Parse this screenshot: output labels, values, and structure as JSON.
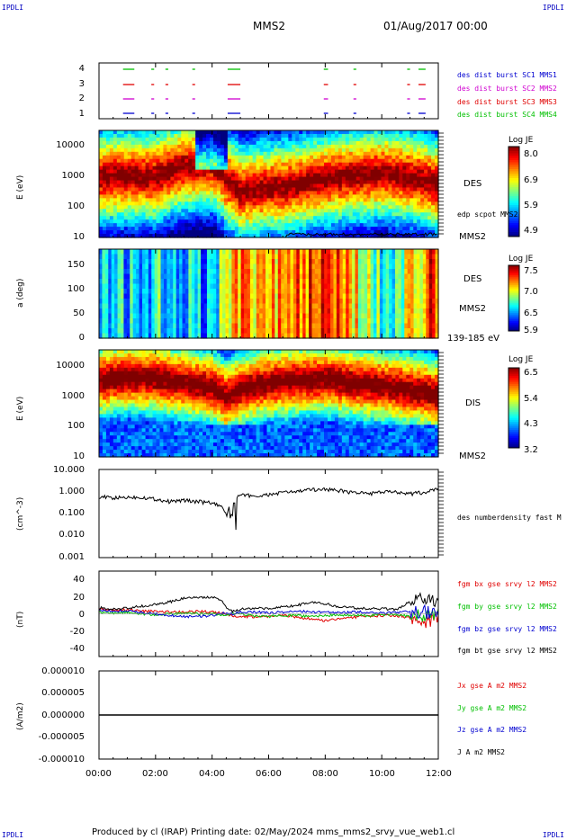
{
  "corner_marks": {
    "top_left": "IPDLI",
    "top_right": "IPDLI",
    "bottom_left": "IPDLI",
    "bottom_right": "IPDLI"
  },
  "header": {
    "spacecraft": "MMS2",
    "date": "01/Aug/2017 00:00"
  },
  "footer": {
    "text": "Produced by cl (IRAP)   Printing date: 02/May/2024   mms_mms2_srvy_vue_web1.cl"
  },
  "colors": {
    "red": "#e00000",
    "magenta": "#d000d0",
    "green": "#00c000",
    "blue": "#0000d0",
    "black": "#000000"
  },
  "x_ticks": [
    "00:00",
    "02:00",
    "04:00",
    "06:00",
    "08:00",
    "10:00",
    "12:00"
  ],
  "panels": {
    "burst": {
      "y_ticks": [
        "4",
        "3",
        "2",
        "1"
      ],
      "legend": [
        {
          "text": "des dist burst SC1 MMS1",
          "color": "#0000d0"
        },
        {
          "text": "des dist burst SC2 MMS2",
          "color": "#d000d0"
        },
        {
          "text": "des dist burst SC3 MMS3",
          "color": "#e00000"
        },
        {
          "text": "des dist burst SC4 MMS4",
          "color": "#00c000"
        }
      ]
    },
    "des_energy": {
      "ylabel": "E (eV)",
      "y_ticks": [
        "10000",
        "1000",
        "100",
        "10"
      ],
      "species": "DES",
      "spacecraft": "MMS2",
      "overlay_label": "edp scpot MMS2",
      "colorbar": {
        "title": "Log JE",
        "ticks": [
          "8.0",
          "6.9",
          "5.9",
          "4.9"
        ]
      }
    },
    "des_pitch": {
      "ylabel": "a (deg)",
      "y_ticks": [
        "150",
        "100",
        "50",
        "0"
      ],
      "species": "DES",
      "spacecraft": "MMS2",
      "energy_range": "139-185 eV",
      "colorbar": {
        "title": "Log JE",
        "ticks": [
          "7.5",
          "7.0",
          "6.5",
          "5.9"
        ]
      }
    },
    "dis_energy": {
      "ylabel": "E (eV)",
      "y_ticks": [
        "10000",
        "1000",
        "100",
        "10"
      ],
      "species": "DIS",
      "spacecraft": "MMS2",
      "colorbar": {
        "title": "Log JE",
        "ticks": [
          "6.5",
          "5.4",
          "4.3",
          "3.2"
        ]
      }
    },
    "density": {
      "ylabel": "(cm^-3)",
      "y_ticks": [
        "10.000",
        "1.000",
        "0.100",
        "0.010",
        "0.001"
      ],
      "legend": "des numberdensity fast M"
    },
    "bfield": {
      "ylabel": "(nT)",
      "y_ticks": [
        "40",
        "20",
        "0",
        "-20",
        "-40"
      ],
      "legend": [
        {
          "text": "fgm bx gse srvy l2 MMS2",
          "color": "#e00000"
        },
        {
          "text": "fgm by gse srvy l2 MMS2",
          "color": "#00c000"
        },
        {
          "text": "fgm bz gse srvy l2 MMS2",
          "color": "#0000d0"
        },
        {
          "text": "fgm bt gse srvy l2 MMS2",
          "color": "#000000"
        }
      ]
    },
    "current": {
      "ylabel": "(A/m2)",
      "y_ticks": [
        "0.000010",
        "0.000005",
        "0.000000",
        "-0.000005",
        "-0.000010"
      ],
      "legend": [
        {
          "text": "Jx gse A m2 MMS2",
          "color": "#e00000"
        },
        {
          "text": "Jy gse A m2 MMS2",
          "color": "#00c000"
        },
        {
          "text": "Jz gse A m2 MMS2",
          "color": "#0000d0"
        },
        {
          "text": "J A m2 MMS2",
          "color": "#000000"
        }
      ]
    }
  },
  "chart_data": [
    {
      "type": "line",
      "name": "burst intervals",
      "xlim": [
        0,
        12
      ],
      "x_unit": "hours UT",
      "series": [
        {
          "name": "des dist burst SC1 MMS1",
          "level": 1,
          "intervals": [
            [
              0.85,
              1.25
            ],
            [
              1.85,
              1.95
            ],
            [
              2.35,
              2.45
            ],
            [
              3.3,
              3.4
            ],
            [
              4.55,
              5.0
            ],
            [
              7.95,
              8.1
            ],
            [
              9.0,
              9.1
            ],
            [
              10.9,
              11.0
            ],
            [
              11.3,
              11.55
            ]
          ]
        },
        {
          "name": "des dist burst SC2 MMS2",
          "level": 2,
          "intervals": [
            [
              0.85,
              1.25
            ],
            [
              1.85,
              1.95
            ],
            [
              2.35,
              2.45
            ],
            [
              3.3,
              3.4
            ],
            [
              4.55,
              5.0
            ],
            [
              7.95,
              8.1
            ],
            [
              9.0,
              9.1
            ],
            [
              10.9,
              11.0
            ],
            [
              11.3,
              11.55
            ]
          ]
        },
        {
          "name": "des dist burst SC3 MMS3",
          "level": 3,
          "intervals": [
            [
              0.85,
              1.25
            ],
            [
              1.85,
              1.95
            ],
            [
              2.35,
              2.45
            ],
            [
              3.3,
              3.4
            ],
            [
              4.55,
              5.0
            ],
            [
              7.95,
              8.1
            ],
            [
              9.0,
              9.1
            ],
            [
              10.9,
              11.0
            ],
            [
              11.3,
              11.55
            ]
          ]
        },
        {
          "name": "des dist burst SC4 MMS4",
          "level": 4,
          "intervals": [
            [
              0.85,
              1.25
            ],
            [
              1.85,
              1.95
            ],
            [
              2.35,
              2.45
            ],
            [
              3.3,
              3.4
            ],
            [
              4.55,
              5.0
            ],
            [
              7.95,
              8.1
            ],
            [
              9.0,
              9.1
            ],
            [
              10.9,
              11.0
            ],
            [
              11.3,
              11.55
            ]
          ]
        }
      ]
    },
    {
      "type": "heatmap",
      "name": "DES energy spectrogram",
      "x": [
        0,
        1,
        2,
        3,
        4,
        4.5,
        5,
        6,
        7,
        8,
        9,
        10,
        11,
        12
      ],
      "ylim": [
        10,
        30000
      ],
      "yscale": "log",
      "peak_energy_eV": [
        900,
        1000,
        900,
        2000,
        2500,
        700,
        300,
        400,
        500,
        800,
        1000,
        1200,
        900,
        500
      ],
      "zlim": [
        4.9,
        8.0
      ]
    },
    {
      "type": "heatmap",
      "name": "DES pitch angle",
      "ylim": [
        0,
        180
      ],
      "zlim": [
        5.9,
        7.5
      ],
      "x": [
        0,
        1,
        2,
        3,
        4,
        4.5,
        5,
        6,
        7,
        8,
        9,
        10,
        11,
        12
      ],
      "level": [
        6.6,
        6.4,
        6.5,
        6.5,
        6.3,
        6.8,
        7.1,
        7.0,
        7.2,
        7.2,
        6.9,
        6.6,
        6.8,
        7.3
      ]
    },
    {
      "type": "heatmap",
      "name": "DIS energy spectrogram",
      "x": [
        0,
        1,
        2,
        3,
        4,
        4.5,
        5,
        6,
        7,
        8,
        9,
        10,
        11,
        12
      ],
      "ylim": [
        10,
        30000
      ],
      "yscale": "log",
      "peak_energy_eV": [
        3000,
        4000,
        3500,
        2500,
        1800,
        800,
        1500,
        2500,
        3000,
        3500,
        2500,
        2000,
        1500,
        1000
      ],
      "zlim": [
        3.2,
        6.5
      ]
    },
    {
      "type": "line",
      "name": "density",
      "yscale": "log",
      "ylim": [
        0.001,
        10
      ],
      "x": [
        0,
        0.5,
        1,
        1.5,
        2,
        2.5,
        3,
        3.5,
        4,
        4.3,
        4.5,
        4.7,
        4.9,
        5.2,
        5.6,
        6,
        6.5,
        7,
        7.5,
        8,
        8.5,
        9,
        9.5,
        10,
        10.5,
        11,
        11.5,
        12
      ],
      "y": [
        0.6,
        0.5,
        0.55,
        0.55,
        0.45,
        0.35,
        0.4,
        0.35,
        0.3,
        0.2,
        0.1,
        0.005,
        0.6,
        0.7,
        0.6,
        0.7,
        0.9,
        1.0,
        1.2,
        1.3,
        1.1,
        0.9,
        0.8,
        0.9,
        1.0,
        0.8,
        0.9,
        1.3
      ]
    },
    {
      "type": "line",
      "name": "magnetic field",
      "ylim": [
        -50,
        50
      ],
      "x": [
        0,
        0.5,
        1,
        1.5,
        2,
        2.5,
        3,
        3.5,
        4,
        4.3,
        4.5,
        4.7,
        5,
        5.5,
        6,
        6.5,
        7,
        7.5,
        8,
        8.5,
        9,
        9.5,
        10,
        10.5,
        11,
        11.5,
        12
      ],
      "series": [
        {
          "name": "fgm bx gse srvy l2 MMS2",
          "values": [
            5,
            4,
            5,
            3,
            3,
            2,
            2,
            3,
            2,
            1,
            0,
            -2,
            -3,
            -4,
            -3,
            -2,
            -4,
            -6,
            -8,
            -6,
            -4,
            -3,
            -2,
            -2,
            -5,
            -10,
            -5
          ]
        },
        {
          "name": "fgm by gse srvy l2 MMS2",
          "values": [
            2,
            1,
            2,
            0,
            -1,
            0,
            1,
            0,
            0,
            -1,
            -1,
            0,
            0,
            -2,
            -3,
            -2,
            -2,
            -3,
            -2,
            -1,
            -2,
            -2,
            -1,
            -1,
            -3,
            -2,
            -1
          ]
        },
        {
          "name": "fgm bz gse srvy l2 MMS2",
          "values": [
            4,
            3,
            3,
            2,
            0,
            -2,
            -3,
            -3,
            -2,
            0,
            1,
            0,
            2,
            2,
            1,
            2,
            3,
            2,
            2,
            1,
            2,
            2,
            1,
            2,
            3,
            2,
            1
          ]
        },
        {
          "name": "fgm bt gse srvy l2 MMS2",
          "values": [
            7,
            6,
            7,
            9,
            11,
            14,
            18,
            19,
            19,
            17,
            8,
            3,
            5,
            7,
            6,
            8,
            10,
            13,
            12,
            8,
            7,
            6,
            6,
            5,
            14,
            20,
            10
          ]
        }
      ]
    },
    {
      "type": "line",
      "name": "current density",
      "ylim": [
        -1e-05,
        1e-05
      ],
      "x": [
        0,
        12
      ],
      "series": [
        {
          "name": "J A m2 MMS2",
          "values": [
            0,
            0
          ]
        }
      ]
    }
  ]
}
